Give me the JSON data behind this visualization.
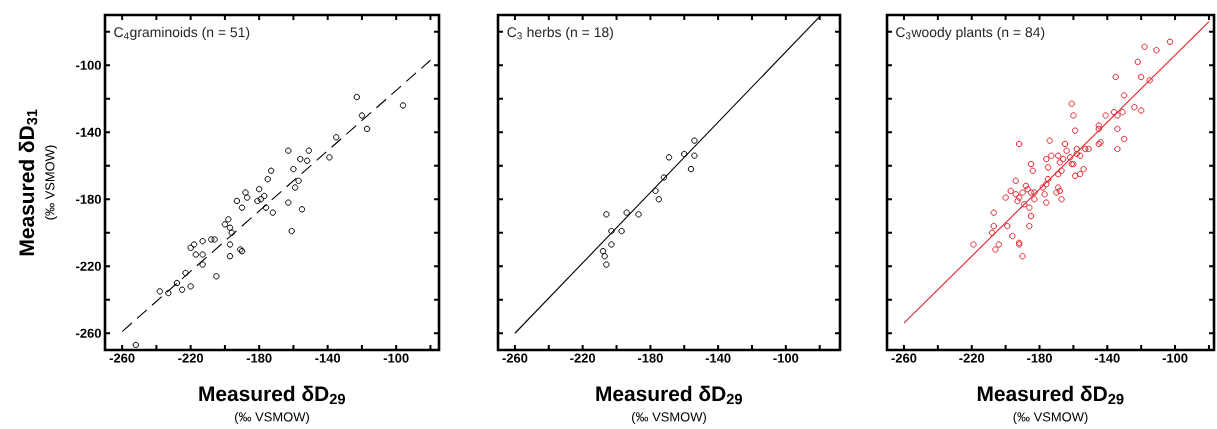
{
  "chart_data": [
    {
      "type": "scatter",
      "title": "C$_{4}$graminoids (n = 51)",
      "xlabel": "Measured δD$_{29}$",
      "ylabel": "Measured δD$_{31}$",
      "annotations": [
        "(‰ VSMOW)",
        "(‰ VSMOW)"
      ],
      "xlim": [
        -270,
        -75
      ],
      "ylim": [
        -270,
        -70
      ],
      "xticks": [
        -260,
        {
          "value": -240,
          "label": null
        },
        -220,
        {
          "value": -200,
          "label": null
        },
        -180,
        {
          "value": -160,
          "label": null
        },
        -140,
        {
          "value": -120,
          "label": null
        },
        -100,
        {
          "value": -80,
          "label": null
        }
      ],
      "yticks": [
        -260,
        {
          "value": -240,
          "label": null
        },
        -220,
        {
          "value": -200,
          "label": null
        },
        -180,
        {
          "value": -160,
          "label": null
        },
        -140,
        {
          "value": -120,
          "label": null
        },
        -100,
        {
          "value": -80,
          "label": null
        }
      ],
      "series": [
        {
          "color": "#000000",
          "marker": "circle",
          "x": [
            -252,
            -238,
            -233,
            -228,
            -225,
            -220,
            -223,
            -220,
            -218,
            -217,
            -213,
            -213,
            -213,
            -208,
            -206,
            -205,
            -200,
            -198,
            -197,
            -196,
            -197,
            -197,
            -191,
            -190,
            -193,
            -190,
            -188,
            -187,
            -181,
            -180,
            -179,
            -177,
            -176,
            -175,
            -173,
            -172,
            -163,
            -160,
            -163,
            -161,
            -159,
            -157,
            -156,
            -155,
            -152,
            -151,
            -139,
            -135,
            -123,
            -120,
            -117,
            -96
          ],
          "values": [
            -267,
            -235,
            -236,
            -230,
            -234,
            -232,
            -224,
            -209,
            -207,
            -213,
            -213,
            -219,
            -205,
            -204,
            -204,
            -226,
            -195,
            -192,
            -197,
            -200,
            -207,
            -214,
            -210,
            -211,
            -181,
            -185,
            -176,
            -179,
            -181,
            -174,
            -180,
            -178,
            -185,
            -168,
            -163,
            -188,
            -151,
            -162,
            -182,
            -199,
            -173,
            -169,
            -156,
            -186,
            -157,
            -151,
            -155,
            -143,
            -119,
            -130,
            -138,
            -124
          ]
        },
        {
          "type": "line",
          "color": "#000000",
          "line_style": "dashed",
          "x": [
            -260,
            -80
          ],
          "values": [
            -259,
            -97
          ]
        }
      ]
    },
    {
      "type": "scatter",
      "title": "C$_{3}$ herbs (n = 18)",
      "xlabel": "Measured δD$_{29}$",
      "annotations": [
        "(‰ VSMOW)"
      ],
      "tick_labels": "x",
      "xlim": [
        -270,
        -68
      ],
      "ylim": [
        -270,
        -70
      ],
      "xticks": [
        -260,
        {
          "value": -240,
          "label": null
        },
        -220,
        {
          "value": -200,
          "label": null
        },
        -180,
        {
          "value": -160,
          "label": null
        },
        -140,
        {
          "value": -120,
          "label": null
        },
        -100,
        {
          "value": -80,
          "label": null
        }
      ],
      "yticks": [
        -260,
        {
          "value": -240,
          "label": null
        },
        -220,
        {
          "value": -200,
          "label": null
        },
        -180,
        {
          "value": -160,
          "label": null
        },
        -140,
        {
          "value": -120,
          "label": null
        },
        -100,
        {
          "value": -80,
          "label": null
        }
      ],
      "series": [
        {
          "color": "#000000",
          "marker": "circle",
          "x": [
            -154,
            -160,
            -154,
            -169,
            -156,
            -172,
            -177,
            -175,
            -206,
            -194,
            -187,
            -203,
            -197,
            -203,
            -208,
            -207,
            -206
          ],
          "values": [
            -145,
            -153,
            -154,
            -155,
            -162,
            -167,
            -175,
            -180,
            -189,
            -188,
            -189,
            -199,
            -199,
            -207,
            -211,
            -214,
            -219
          ]
        },
        {
          "type": "line",
          "color": "#000000",
          "line_style": "solid",
          "x": [
            -260,
            -80
          ],
          "values": [
            -260,
            -71
          ]
        }
      ]
    },
    {
      "type": "scatter",
      "title": "C$_{3}$woody plants (n = 84)",
      "xlabel": "Measured δD$_{29}$",
      "annotations": [
        "(‰ VSMOW)"
      ],
      "tick_labels": "x",
      "xlim": [
        -270,
        -77
      ],
      "ylim": [
        -270,
        -70
      ],
      "xticks": [
        -260,
        {
          "value": -240,
          "label": null
        },
        -220,
        {
          "value": -200,
          "label": null
        },
        -180,
        {
          "value": -160,
          "label": null
        },
        -140,
        {
          "value": -120,
          "label": null
        },
        -100,
        {
          "value": -80,
          "label": null
        }
      ],
      "yticks": [
        -260,
        {
          "value": -240,
          "label": null
        },
        -220,
        {
          "value": -200,
          "label": null
        },
        -180,
        {
          "value": -160,
          "label": null
        },
        -140,
        {
          "value": -120,
          "label": null
        },
        -100,
        {
          "value": -80,
          "label": null
        }
      ],
      "series": [
        {
          "color": "#e0202a",
          "marker": "circle",
          "x": [
            -103,
            -118,
            -111,
            -122,
            -135,
            -120,
            -115,
            -130,
            -124,
            -120,
            -161,
            -160,
            -141,
            -136,
            -134,
            -131,
            -145,
            -145,
            -134,
            -159,
            -130,
            -134,
            -145,
            -144,
            -174,
            -192,
            -165,
            -164,
            -158,
            -153,
            -151,
            -158,
            -173,
            -169,
            -176,
            -166,
            -162,
            -156,
            -168,
            -161,
            -160,
            -185,
            -184,
            -175,
            -167,
            -154,
            -169,
            -159,
            -156,
            -175,
            -194,
            -176,
            -178,
            -169,
            -188,
            -168,
            -170,
            -197,
            -187,
            -194,
            -190,
            -185,
            -183,
            -177,
            -200,
            -192,
            -193,
            -183,
            -167,
            -176,
            -189,
            -186,
            -207,
            -185,
            -207,
            -199,
            -186,
            -208,
            -196,
            -219,
            -204,
            -192,
            -192,
            -206,
            -190
          ],
          "values": [
            -86,
            -89,
            -91,
            -98,
            -107,
            -107,
            -109,
            -118,
            -125,
            -127,
            -123,
            -130,
            -130,
            -128,
            -130,
            -128,
            -136,
            -138,
            -138,
            -139,
            -144,
            -150,
            -147,
            -146,
            -145,
            -147,
            -147,
            -151,
            -150,
            -150,
            -150,
            -153,
            -154,
            -154,
            -156,
            -156,
            -155,
            -154,
            -158,
            -159,
            -159,
            -159,
            -163,
            -161,
            -163,
            -162,
            -165,
            -166,
            -165,
            -168,
            -169,
            -171,
            -173,
            -173,
            -172,
            -175,
            -176,
            -175,
            -174,
            -177,
            -176,
            -176,
            -176,
            -177,
            -179,
            -179,
            -181,
            -180,
            -180,
            -182,
            -183,
            -185,
            -188,
            -190,
            -196,
            -196,
            -196,
            -200,
            -202,
            -207,
            -207,
            -206,
            -207,
            -210,
            -214
          ]
        },
        {
          "type": "line",
          "color": "#e0202a",
          "line_style": "solid",
          "x": [
            -260,
            -80
          ],
          "values": [
            -254,
            -74
          ]
        }
      ]
    }
  ]
}
